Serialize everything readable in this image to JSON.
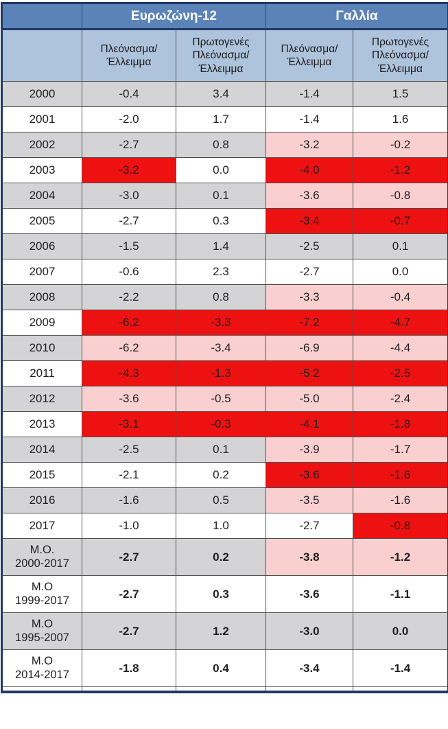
{
  "colors": {
    "header_blue": "#5b83b8",
    "subheader_blue": "#aec3dc",
    "border_navy": "#1f3864",
    "row_gray": "#d4d4d6",
    "highlight_pink": "#f9cfcf",
    "highlight_red": "#ee1111",
    "text_dark": "#1b1b1b"
  },
  "table": {
    "corner": "",
    "groups": [
      {
        "label": "Ευρωζώνη-12"
      },
      {
        "label": "Γαλλία"
      }
    ],
    "subheaders": [
      "Πλεόνασμα/\nΈλλειμμα",
      "Πρωτογενές\nΠλεόνασμα/\nΈλλειμμα",
      "Πλεόνασμα/\nΈλλειμμα",
      "Πρωτογενές\nΠλεόνασμα/\nΈλλειμμα"
    ],
    "rows": [
      {
        "label": "2000",
        "label_bg": "gray",
        "avg": false,
        "cells": [
          {
            "v": "-0.4",
            "bg": "gray"
          },
          {
            "v": "3.4",
            "bg": "gray"
          },
          {
            "v": "-1.4",
            "bg": "gray"
          },
          {
            "v": "1.5",
            "bg": "gray"
          }
        ]
      },
      {
        "label": "2001",
        "label_bg": "white",
        "avg": false,
        "cells": [
          {
            "v": "-2.0",
            "bg": "white"
          },
          {
            "v": "1.7",
            "bg": "white"
          },
          {
            "v": "-1.4",
            "bg": "white"
          },
          {
            "v": "1.6",
            "bg": "white"
          }
        ]
      },
      {
        "label": "2002",
        "label_bg": "gray",
        "avg": false,
        "cells": [
          {
            "v": "-2.7",
            "bg": "gray"
          },
          {
            "v": "0.8",
            "bg": "gray"
          },
          {
            "v": "-3.2",
            "bg": "pink"
          },
          {
            "v": "-0.2",
            "bg": "pink"
          }
        ]
      },
      {
        "label": "2003",
        "label_bg": "white",
        "avg": false,
        "cells": [
          {
            "v": "-3.2",
            "bg": "red"
          },
          {
            "v": "0.0",
            "bg": "white"
          },
          {
            "v": "-4.0",
            "bg": "red"
          },
          {
            "v": "-1.2",
            "bg": "red"
          }
        ]
      },
      {
        "label": "2004",
        "label_bg": "gray",
        "avg": false,
        "cells": [
          {
            "v": "-3.0",
            "bg": "gray"
          },
          {
            "v": "0.1",
            "bg": "gray"
          },
          {
            "v": "-3.6",
            "bg": "pink"
          },
          {
            "v": "-0.8",
            "bg": "pink"
          }
        ]
      },
      {
        "label": "2005",
        "label_bg": "white",
        "avg": false,
        "cells": [
          {
            "v": "-2.7",
            "bg": "white"
          },
          {
            "v": "0.3",
            "bg": "white"
          },
          {
            "v": "-3.4",
            "bg": "red"
          },
          {
            "v": "-0.7",
            "bg": "red"
          }
        ]
      },
      {
        "label": "2006",
        "label_bg": "gray",
        "avg": false,
        "cells": [
          {
            "v": "-1.5",
            "bg": "gray"
          },
          {
            "v": "1.4",
            "bg": "gray"
          },
          {
            "v": "-2.5",
            "bg": "gray"
          },
          {
            "v": "0.1",
            "bg": "gray"
          }
        ]
      },
      {
        "label": "2007",
        "label_bg": "white",
        "avg": false,
        "cells": [
          {
            "v": "-0.6",
            "bg": "white"
          },
          {
            "v": "2.3",
            "bg": "white"
          },
          {
            "v": "-2.7",
            "bg": "white"
          },
          {
            "v": "0.0",
            "bg": "white"
          }
        ]
      },
      {
        "label": "2008",
        "label_bg": "gray",
        "avg": false,
        "cells": [
          {
            "v": "-2.2",
            "bg": "gray"
          },
          {
            "v": "0.8",
            "bg": "gray"
          },
          {
            "v": "-3.3",
            "bg": "pink"
          },
          {
            "v": "-0.4",
            "bg": "pink"
          }
        ]
      },
      {
        "label": "2009",
        "label_bg": "white",
        "avg": false,
        "cells": [
          {
            "v": "-6.2",
            "bg": "red"
          },
          {
            "v": "-3.3",
            "bg": "red"
          },
          {
            "v": "-7.2",
            "bg": "red"
          },
          {
            "v": "-4.7",
            "bg": "red"
          }
        ]
      },
      {
        "label": "2010",
        "label_bg": "gray",
        "avg": false,
        "cells": [
          {
            "v": "-6.2",
            "bg": "pink"
          },
          {
            "v": "-3.4",
            "bg": "pink"
          },
          {
            "v": "-6.9",
            "bg": "pink"
          },
          {
            "v": "-4.4",
            "bg": "pink"
          }
        ]
      },
      {
        "label": "2011",
        "label_bg": "white",
        "avg": false,
        "cells": [
          {
            "v": "-4.3",
            "bg": "red"
          },
          {
            "v": "-1.3",
            "bg": "red"
          },
          {
            "v": "-5.2",
            "bg": "red"
          },
          {
            "v": "-2.5",
            "bg": "red"
          }
        ]
      },
      {
        "label": "2012",
        "label_bg": "gray",
        "avg": false,
        "cells": [
          {
            "v": "-3.6",
            "bg": "pink"
          },
          {
            "v": "-0.5",
            "bg": "pink"
          },
          {
            "v": "-5.0",
            "bg": "pink"
          },
          {
            "v": "-2.4",
            "bg": "pink"
          }
        ]
      },
      {
        "label": "2013",
        "label_bg": "white",
        "avg": false,
        "cells": [
          {
            "v": "-3.1",
            "bg": "red"
          },
          {
            "v": "-0.3",
            "bg": "red"
          },
          {
            "v": "-4.1",
            "bg": "red"
          },
          {
            "v": "-1.8",
            "bg": "red"
          }
        ]
      },
      {
        "label": "2014",
        "label_bg": "gray",
        "avg": false,
        "cells": [
          {
            "v": "-2.5",
            "bg": "gray"
          },
          {
            "v": "0.1",
            "bg": "gray"
          },
          {
            "v": "-3.9",
            "bg": "pink"
          },
          {
            "v": "-1.7",
            "bg": "pink"
          }
        ]
      },
      {
        "label": "2015",
        "label_bg": "white",
        "avg": false,
        "cells": [
          {
            "v": "-2.1",
            "bg": "white"
          },
          {
            "v": "0.2",
            "bg": "white"
          },
          {
            "v": "-3.6",
            "bg": "red"
          },
          {
            "v": "-1.6",
            "bg": "red"
          }
        ]
      },
      {
        "label": "2016",
        "label_bg": "gray",
        "avg": false,
        "cells": [
          {
            "v": "-1.6",
            "bg": "gray"
          },
          {
            "v": "0.5",
            "bg": "gray"
          },
          {
            "v": "-3.5",
            "bg": "pink"
          },
          {
            "v": "-1.6",
            "bg": "pink"
          }
        ]
      },
      {
        "label": "2017",
        "label_bg": "white",
        "avg": false,
        "cells": [
          {
            "v": "-1.0",
            "bg": "white"
          },
          {
            "v": "1.0",
            "bg": "white"
          },
          {
            "v": "-2.7",
            "bg": "white"
          },
          {
            "v": "-0.8",
            "bg": "red"
          }
        ]
      },
      {
        "label": "M.O.\n2000-2017",
        "label_bg": "gray",
        "avg": true,
        "cells": [
          {
            "v": "-2.7",
            "bg": "gray"
          },
          {
            "v": "0.2",
            "bg": "gray"
          },
          {
            "v": "-3.8",
            "bg": "pink"
          },
          {
            "v": "-1.2",
            "bg": "pink"
          }
        ]
      },
      {
        "label": "M.O\n1999-2017",
        "label_bg": "white",
        "avg": true,
        "cells": [
          {
            "v": "-2.7",
            "bg": "white"
          },
          {
            "v": "0.3",
            "bg": "white"
          },
          {
            "v": "-3.6",
            "bg": "white"
          },
          {
            "v": "-1.1",
            "bg": "white"
          }
        ]
      },
      {
        "label": "M.O\n1995-2007",
        "label_bg": "gray",
        "avg": true,
        "cells": [
          {
            "v": "-2.7",
            "bg": "gray"
          },
          {
            "v": "1.2",
            "bg": "gray"
          },
          {
            "v": "-3.0",
            "bg": "gray"
          },
          {
            "v": "0.0",
            "bg": "gray"
          }
        ]
      },
      {
        "label": "M.O\n2014-2017",
        "label_bg": "white",
        "avg": true,
        "cells": [
          {
            "v": "-1.8",
            "bg": "white"
          },
          {
            "v": "0.4",
            "bg": "white"
          },
          {
            "v": "-3.4",
            "bg": "white"
          },
          {
            "v": "-1.4",
            "bg": "white"
          }
        ]
      }
    ]
  },
  "chart_data": {
    "type": "table",
    "title": "",
    "column_groups": [
      "Ευρωζώνη-12",
      "Ευρωζώνη-12",
      "Γαλλία",
      "Γαλλία"
    ],
    "columns": [
      "Πλεόνασμα/Έλλειμμα",
      "Πρωτογενές Πλεόνασμα/Έλλειμμα",
      "Πλεόνασμα/Έλλειμμα",
      "Πρωτογενές Πλεόνασμα/Έλλειμμα"
    ],
    "row_labels": [
      "2000",
      "2001",
      "2002",
      "2003",
      "2004",
      "2005",
      "2006",
      "2007",
      "2008",
      "2009",
      "2010",
      "2011",
      "2012",
      "2013",
      "2014",
      "2015",
      "2016",
      "2017",
      "M.O. 2000-2017",
      "M.O 1999-2017",
      "M.O 1995-2007",
      "M.O 2014-2017"
    ],
    "values": [
      [
        -0.4,
        3.4,
        -1.4,
        1.5
      ],
      [
        -2.0,
        1.7,
        -1.4,
        1.6
      ],
      [
        -2.7,
        0.8,
        -3.2,
        -0.2
      ],
      [
        -3.2,
        0.0,
        -4.0,
        -1.2
      ],
      [
        -3.0,
        0.1,
        -3.6,
        -0.8
      ],
      [
        -2.7,
        0.3,
        -3.4,
        -0.7
      ],
      [
        -1.5,
        1.4,
        -2.5,
        0.1
      ],
      [
        -0.6,
        2.3,
        -2.7,
        0.0
      ],
      [
        -2.2,
        0.8,
        -3.3,
        -0.4
      ],
      [
        -6.2,
        -3.3,
        -7.2,
        -4.7
      ],
      [
        -6.2,
        -3.4,
        -6.9,
        -4.4
      ],
      [
        -4.3,
        -1.3,
        -5.2,
        -2.5
      ],
      [
        -3.6,
        -0.5,
        -5.0,
        -2.4
      ],
      [
        -3.1,
        -0.3,
        -4.1,
        -1.8
      ],
      [
        -2.5,
        0.1,
        -3.9,
        -1.7
      ],
      [
        -2.1,
        0.2,
        -3.6,
        -1.6
      ],
      [
        -1.6,
        0.5,
        -3.5,
        -1.6
      ],
      [
        -1.0,
        1.0,
        -2.7,
        -0.8
      ],
      [
        -2.7,
        0.2,
        -3.8,
        -1.2
      ],
      [
        -2.7,
        0.3,
        -3.6,
        -1.1
      ],
      [
        -2.7,
        1.2,
        -3.0,
        0.0
      ],
      [
        -1.8,
        0.4,
        -3.4,
        -1.4
      ]
    ],
    "legend": "red = deficit breach highlight, pink = light breach highlight",
    "grid": true
  }
}
